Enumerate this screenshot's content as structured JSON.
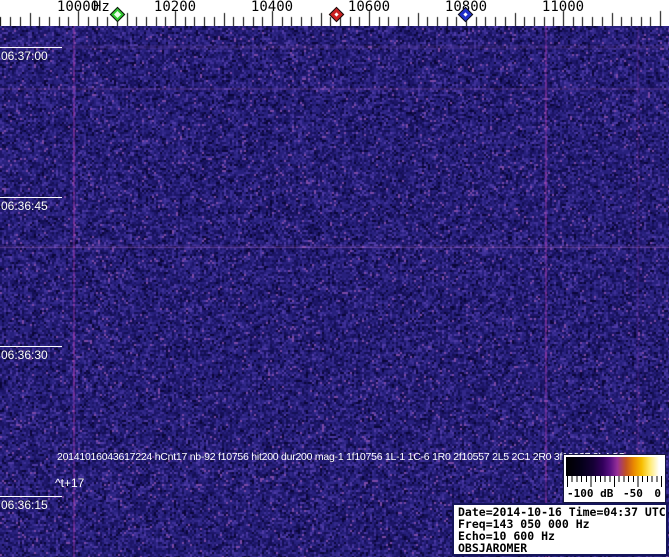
{
  "frequency_ruler": {
    "unit": "Hz",
    "tick_labels": [
      {
        "hz": 10000,
        "text": "10000"
      },
      {
        "hz": 10200,
        "text": "10200"
      },
      {
        "hz": 10400,
        "text": "10400"
      },
      {
        "hz": 10600,
        "text": "10600"
      },
      {
        "hz": 10800,
        "text": "10800"
      },
      {
        "hz": 11000,
        "text": "11000"
      }
    ],
    "minor_step_hz": 20,
    "medium_step_hz": 100,
    "major_step_hz": 200,
    "markers": [
      {
        "name": "green-diamond-marker",
        "hz": 10082,
        "fill": "#2ec82e"
      },
      {
        "name": "red-diamond-marker",
        "hz": 10534,
        "fill": "#cc2020"
      },
      {
        "name": "blue-diamond-marker",
        "hz": 10798,
        "fill": "#2030cc"
      }
    ]
  },
  "time_axis": {
    "tick_labels": [
      "06:37:00",
      "06:36:45",
      "06:36:30",
      "06:36:15"
    ]
  },
  "spectrogram": {
    "background": "#1d1668",
    "noise_palette": [
      "#0a0638",
      "#141055",
      "#1d1668",
      "#27207c",
      "#32288a",
      "#3e3098",
      "#4f3ba6",
      "#7c4aa8"
    ],
    "carrier_lines": [
      {
        "hz": 9990,
        "strength": 1.0
      },
      {
        "hz": 10963,
        "strength": 1.0
      },
      {
        "hz": 11152,
        "strength": 0.35
      }
    ]
  },
  "overlay": {
    "hit_line": "20141016043617224 hCnt17 nb-92 f10756 hit200 dur200 mag-1 1f10756 1L-1 1C-6 1R0 2f10557 2L5 2C1 2R0 3f10937 3L4 3C",
    "cursor_label": "^t+17"
  },
  "colorbar": {
    "labels": {
      "min": "-100 dB",
      "mid": "-50",
      "max": "0"
    }
  },
  "info_box": {
    "lines": [
      "Date=2014-10-16 Time=04:37 UTC",
      "Freq=143 050 000 Hz",
      "Echo=10 600 Hz",
      "OBSJAROMER"
    ]
  }
}
